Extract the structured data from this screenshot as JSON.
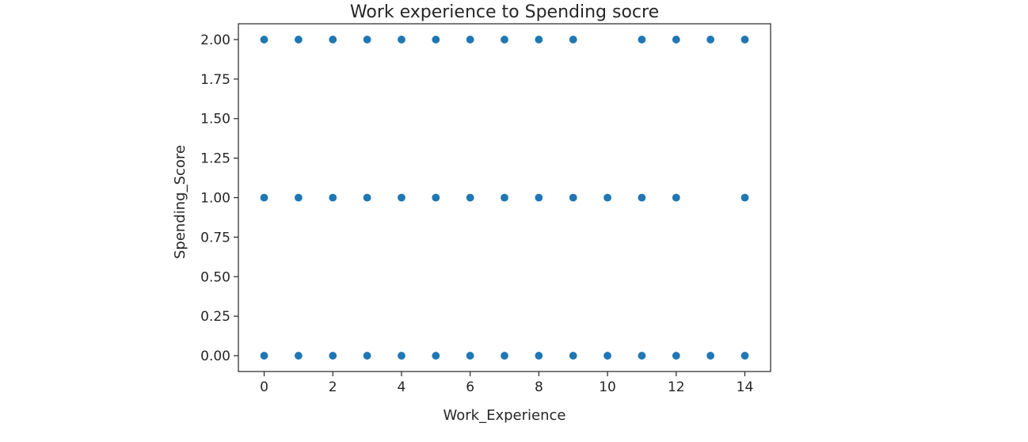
{
  "chart_data": {
    "type": "scatter",
    "title": "Work experience to Spending socre",
    "xlabel": "Work_Experience",
    "ylabel": "Spending_Score",
    "xlim": [
      -0.75,
      14.75
    ],
    "ylim": [
      -0.1,
      2.1
    ],
    "xticks": [
      0,
      2,
      4,
      6,
      8,
      10,
      12,
      14
    ],
    "yticks": [
      0.0,
      0.25,
      0.5,
      0.75,
      1.0,
      1.25,
      1.5,
      1.75,
      2.0
    ],
    "ytick_labels": [
      "0.00",
      "0.25",
      "0.50",
      "0.75",
      "1.00",
      "1.25",
      "1.50",
      "1.75",
      "2.00"
    ],
    "grid": false,
    "color": "#1f77b4",
    "points": [
      {
        "x": 0,
        "y": 0
      },
      {
        "x": 1,
        "y": 0
      },
      {
        "x": 2,
        "y": 0
      },
      {
        "x": 3,
        "y": 0
      },
      {
        "x": 4,
        "y": 0
      },
      {
        "x": 5,
        "y": 0
      },
      {
        "x": 6,
        "y": 0
      },
      {
        "x": 7,
        "y": 0
      },
      {
        "x": 8,
        "y": 0
      },
      {
        "x": 9,
        "y": 0
      },
      {
        "x": 10,
        "y": 0
      },
      {
        "x": 11,
        "y": 0
      },
      {
        "x": 12,
        "y": 0
      },
      {
        "x": 13,
        "y": 0
      },
      {
        "x": 14,
        "y": 0
      },
      {
        "x": 0,
        "y": 1
      },
      {
        "x": 1,
        "y": 1
      },
      {
        "x": 2,
        "y": 1
      },
      {
        "x": 3,
        "y": 1
      },
      {
        "x": 4,
        "y": 1
      },
      {
        "x": 5,
        "y": 1
      },
      {
        "x": 6,
        "y": 1
      },
      {
        "x": 7,
        "y": 1
      },
      {
        "x": 8,
        "y": 1
      },
      {
        "x": 9,
        "y": 1
      },
      {
        "x": 10,
        "y": 1
      },
      {
        "x": 11,
        "y": 1
      },
      {
        "x": 12,
        "y": 1
      },
      {
        "x": 14,
        "y": 1
      },
      {
        "x": 0,
        "y": 2
      },
      {
        "x": 1,
        "y": 2
      },
      {
        "x": 2,
        "y": 2
      },
      {
        "x": 3,
        "y": 2
      },
      {
        "x": 4,
        "y": 2
      },
      {
        "x": 5,
        "y": 2
      },
      {
        "x": 6,
        "y": 2
      },
      {
        "x": 7,
        "y": 2
      },
      {
        "x": 8,
        "y": 2
      },
      {
        "x": 9,
        "y": 2
      },
      {
        "x": 11,
        "y": 2
      },
      {
        "x": 12,
        "y": 2
      },
      {
        "x": 13,
        "y": 2
      },
      {
        "x": 14,
        "y": 2
      }
    ]
  }
}
